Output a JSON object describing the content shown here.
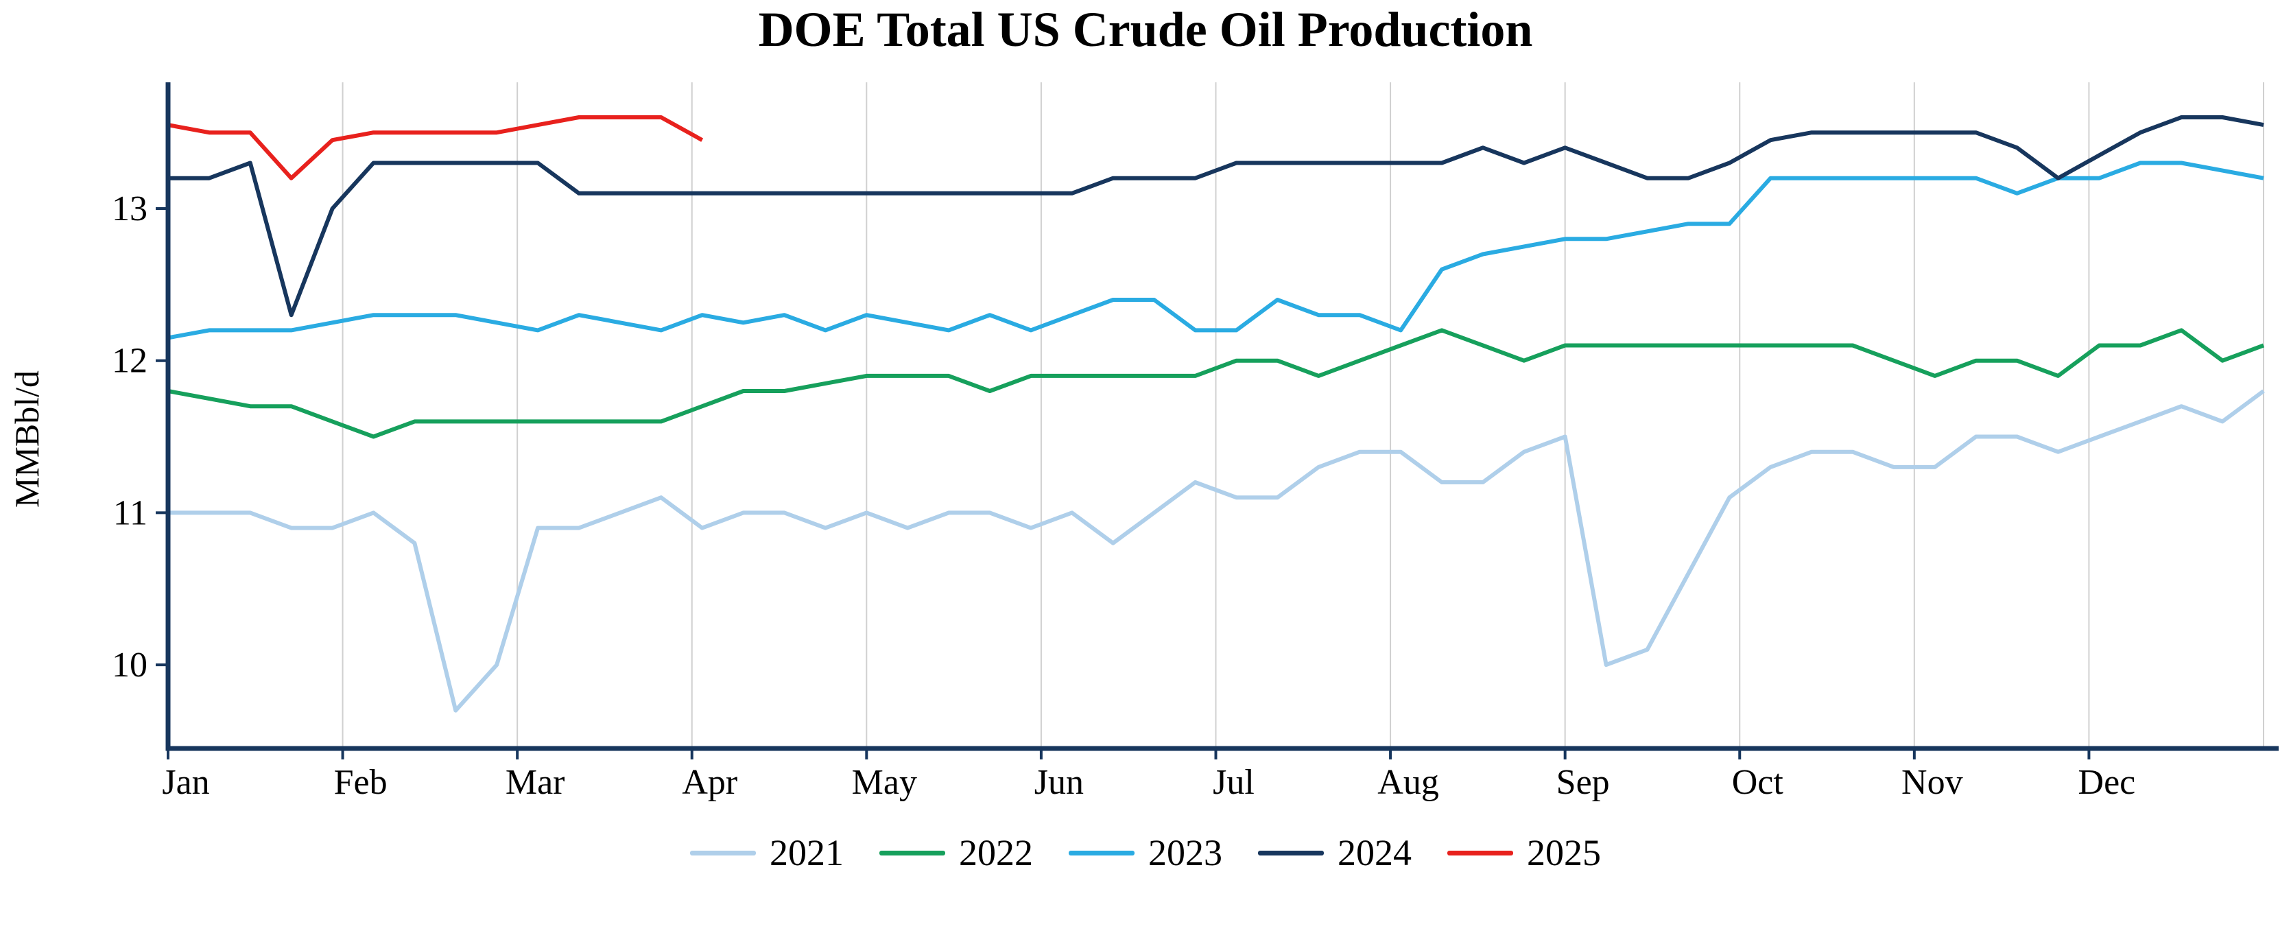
{
  "chart_data": {
    "type": "line",
    "title": "DOE Total US Crude Oil Production",
    "ylabel": "MMBbl/d",
    "xlabel": "",
    "x_unit": "week-of-year",
    "x_tick_labels": [
      "Jan",
      "Feb",
      "Mar",
      "Apr",
      "May",
      "Jun",
      "Jul",
      "Aug",
      "Sep",
      "Oct",
      "Nov",
      "Dec"
    ],
    "y_ticks": [
      10,
      11,
      12,
      13
    ],
    "ylim": [
      9.45,
      13.83
    ],
    "grid": "vertical-only",
    "legend_position": "bottom-center",
    "axis_color": "#17365d",
    "grid_color": "#d0d0d0",
    "series": [
      {
        "name": "2021",
        "color": "#afcfea",
        "values": [
          11.0,
          11.0,
          11.0,
          10.9,
          10.9,
          11.0,
          10.8,
          9.7,
          10.0,
          10.9,
          10.9,
          11.0,
          11.1,
          10.9,
          11.0,
          11.0,
          10.9,
          11.0,
          10.9,
          11.0,
          11.0,
          10.9,
          11.0,
          10.8,
          11.0,
          11.2,
          11.1,
          11.1,
          11.3,
          11.4,
          11.4,
          11.2,
          11.2,
          11.4,
          11.5,
          10.0,
          10.1,
          10.6,
          11.1,
          11.3,
          11.4,
          11.4,
          11.3,
          11.3,
          11.5,
          11.5,
          11.4,
          11.5,
          11.6,
          11.7,
          11.6,
          11.8
        ]
      },
      {
        "name": "2022",
        "color": "#16a05c",
        "values": [
          11.8,
          11.75,
          11.7,
          11.7,
          11.6,
          11.5,
          11.6,
          11.6,
          11.6,
          11.6,
          11.6,
          11.6,
          11.6,
          11.7,
          11.8,
          11.8,
          11.85,
          11.9,
          11.9,
          11.9,
          11.8,
          11.9,
          11.9,
          11.9,
          11.9,
          11.9,
          12.0,
          12.0,
          11.9,
          12.0,
          12.1,
          12.2,
          12.1,
          12.0,
          12.1,
          12.1,
          12.1,
          12.1,
          12.1,
          12.1,
          12.1,
          12.1,
          12.0,
          11.9,
          12.0,
          12.0,
          11.9,
          12.1,
          12.1,
          12.2,
          12.0,
          12.1
        ]
      },
      {
        "name": "2023",
        "color": "#2aabe2",
        "values": [
          12.15,
          12.2,
          12.2,
          12.2,
          12.25,
          12.3,
          12.3,
          12.3,
          12.25,
          12.2,
          12.3,
          12.25,
          12.2,
          12.3,
          12.25,
          12.3,
          12.2,
          12.3,
          12.25,
          12.2,
          12.3,
          12.2,
          12.3,
          12.4,
          12.4,
          12.2,
          12.2,
          12.4,
          12.3,
          12.3,
          12.2,
          12.6,
          12.7,
          12.75,
          12.8,
          12.8,
          12.85,
          12.9,
          12.9,
          13.2,
          13.2,
          13.2,
          13.2,
          13.2,
          13.2,
          13.1,
          13.2,
          13.2,
          13.3,
          13.3,
          13.25,
          13.2
        ]
      },
      {
        "name": "2024",
        "color": "#17365d",
        "values": [
          13.2,
          13.2,
          13.3,
          12.3,
          13.0,
          13.3,
          13.3,
          13.3,
          13.3,
          13.3,
          13.1,
          13.1,
          13.1,
          13.1,
          13.1,
          13.1,
          13.1,
          13.1,
          13.1,
          13.1,
          13.1,
          13.1,
          13.1,
          13.2,
          13.2,
          13.2,
          13.3,
          13.3,
          13.3,
          13.3,
          13.3,
          13.3,
          13.4,
          13.3,
          13.4,
          13.3,
          13.2,
          13.2,
          13.3,
          13.45,
          13.5,
          13.5,
          13.5,
          13.5,
          13.5,
          13.4,
          13.2,
          13.35,
          13.5,
          13.6,
          13.6,
          13.55
        ]
      },
      {
        "name": "2025",
        "color": "#e8211d",
        "values": [
          13.55,
          13.5,
          13.5,
          13.2,
          13.45,
          13.5,
          13.5,
          13.5,
          13.5,
          13.55,
          13.6,
          13.6,
          13.6,
          13.45
        ]
      }
    ]
  }
}
